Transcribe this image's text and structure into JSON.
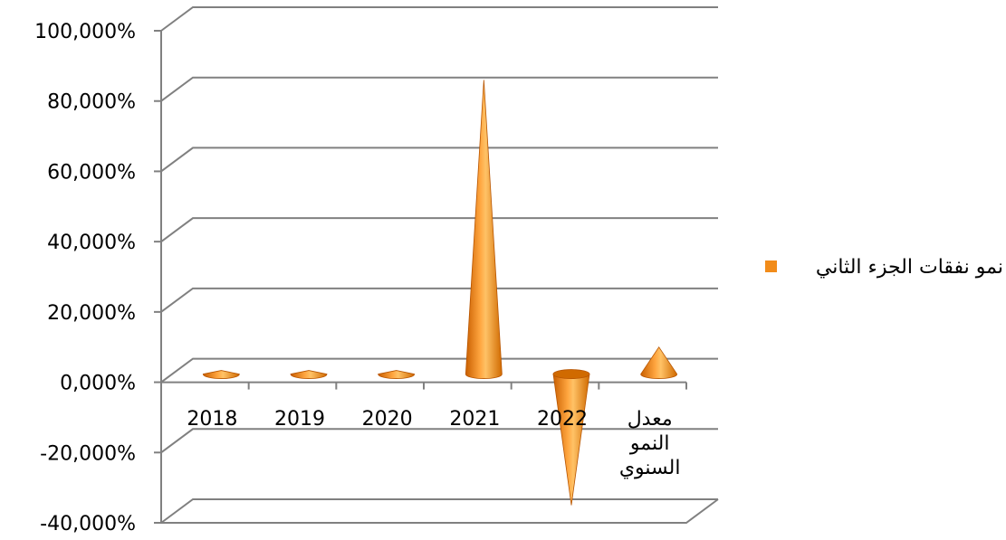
{
  "chart_data": {
    "type": "bar",
    "shape": "cone-3d",
    "categories": [
      "2018",
      "2019",
      "2020",
      "2021",
      "2022",
      "معدل النمو السنوي"
    ],
    "category_lines": [
      [
        "2018"
      ],
      [
        "2019"
      ],
      [
        "2020"
      ],
      [
        "2021"
      ],
      [
        "2022"
      ],
      [
        "معدل",
        "النمو",
        "السنوي"
      ]
    ],
    "series": [
      {
        "name": "نمو نفقات الجزء الثاني",
        "values": [
          0.2,
          2.5,
          0.3,
          86,
          -35,
          10
        ]
      }
    ],
    "y_ticks": [
      "-40,000%",
      "-20,000%",
      "0,000%",
      "20,000%",
      "40,000%",
      "60,000%",
      "80,000%",
      "100,000%"
    ],
    "ylim": [
      -40,
      100
    ],
    "grid": true,
    "legend_position": "right",
    "colors": {
      "series": "#F28C1A",
      "series_dark": "#C95F00",
      "series_light": "#FFC266",
      "grid": "#808080"
    }
  }
}
